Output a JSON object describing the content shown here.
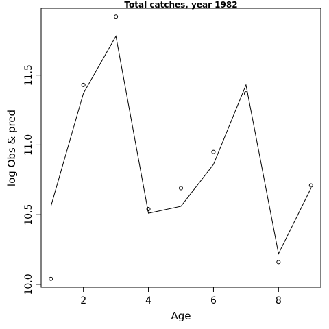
{
  "chart_data": {
    "type": "line",
    "title": "Total catches, year 1982",
    "xlabel": "Age",
    "ylabel": "log Obs & pred",
    "xlim": [
      0.7,
      9.3
    ],
    "ylim": [
      9.98,
      11.98
    ],
    "x_ticks": [
      2,
      4,
      6,
      8
    ],
    "y_ticks": [
      10.0,
      10.5,
      11.0,
      11.5
    ],
    "x_tick_labels": [
      "2",
      "4",
      "6",
      "8"
    ],
    "y_tick_labels": [
      "10.0",
      "10.5",
      "11.0",
      "11.5"
    ],
    "grid": false,
    "legend": "none",
    "series": [
      {
        "style": "points",
        "x": [
          1,
          2,
          3,
          4,
          5,
          6,
          7,
          8,
          9
        ],
        "y": [
          10.04,
          11.43,
          11.92,
          10.54,
          10.69,
          10.95,
          11.37,
          10.16,
          10.71
        ]
      },
      {
        "style": "line",
        "x": [
          1,
          2,
          3,
          4,
          5,
          6,
          7,
          8,
          9
        ],
        "y": [
          10.56,
          11.37,
          11.78,
          10.51,
          10.56,
          10.86,
          11.43,
          10.22,
          10.69
        ]
      }
    ]
  }
}
